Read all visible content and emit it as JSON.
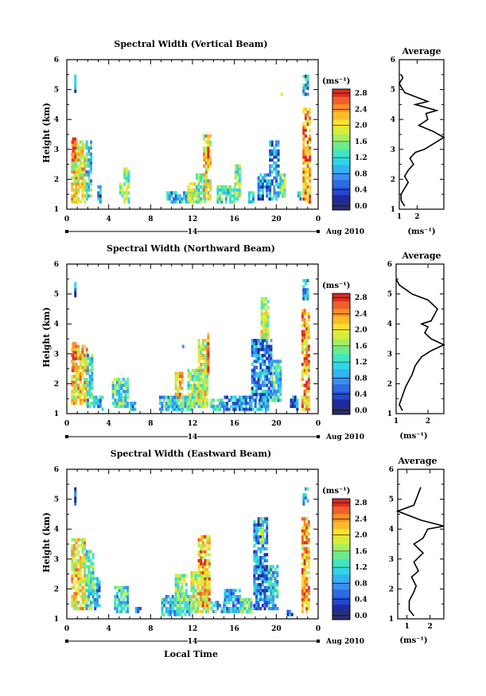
{
  "figure": {
    "xlabel": "Local Time",
    "date_label": "Aug 2010",
    "day_label": "14",
    "colorbar_unit": "(ms⁻¹)",
    "profile_title": "Average",
    "profile_xlabel": "(ms⁻¹)"
  },
  "colors": {
    "background": "#ffffff",
    "palette": [
      "#2b2f6e",
      "#1f2a9c",
      "#2547cc",
      "#2d6be0",
      "#3b8ef0",
      "#31b4f0",
      "#2fd6e6",
      "#3fe6c0",
      "#6aec8e",
      "#a5ee62",
      "#d6ee3c",
      "#fbe22c",
      "#fdbb2a",
      "#f98f28",
      "#ef5f2a",
      "#dd2b25"
    ]
  },
  "chart_data": [
    {
      "type": "heatmap",
      "title": "Spectral Width (Vertical Beam)",
      "ylabel": "Height (km)",
      "x_range": [
        0,
        24
      ],
      "x_ticks": [
        "0",
        "4",
        "8",
        "12",
        "16",
        "20",
        "0"
      ],
      "y_range": [
        1,
        6
      ],
      "y_ticks": [
        "1",
        "2",
        "3",
        "4",
        "5",
        "6"
      ],
      "colorbar": {
        "min": 0.0,
        "max": 3.0,
        "ticks": [
          "2.8",
          "2.4",
          "2.0",
          "1.6",
          "1.2",
          "0.8",
          "0.4",
          "0.0"
        ]
      },
      "regions": [
        {
          "t0": 0.4,
          "t1": 1.8,
          "h0": 1.2,
          "h1": 3.3,
          "v": 2.1
        },
        {
          "t0": 0.5,
          "t1": 0.8,
          "h0": 2.6,
          "h1": 3.4,
          "v": 2.9
        },
        {
          "t0": 1.8,
          "t1": 2.3,
          "h0": 1.3,
          "h1": 3.3,
          "v": 1.3
        },
        {
          "t0": 2.9,
          "t1": 3.2,
          "h0": 1.2,
          "h1": 1.8,
          "v": 0.9
        },
        {
          "t0": 5.0,
          "t1": 5.4,
          "h0": 1.4,
          "h1": 1.9,
          "v": 1.5
        },
        {
          "t0": 5.4,
          "t1": 6.0,
          "h0": 1.2,
          "h1": 2.4,
          "v": 1.8
        },
        {
          "t0": 9.5,
          "t1": 12.0,
          "h0": 1.2,
          "h1": 1.6,
          "v": 1.0
        },
        {
          "t0": 11.5,
          "t1": 12.4,
          "h0": 1.2,
          "h1": 1.9,
          "v": 1.9
        },
        {
          "t0": 12.3,
          "t1": 13.3,
          "h0": 1.2,
          "h1": 2.2,
          "v": 1.6
        },
        {
          "t0": 13.0,
          "t1": 13.8,
          "h0": 1.3,
          "h1": 3.5,
          "v": 2.2
        },
        {
          "t0": 13.4,
          "t1": 13.6,
          "h0": 2.6,
          "h1": 3.5,
          "v": 2.7
        },
        {
          "t0": 14.3,
          "t1": 16.0,
          "h0": 1.2,
          "h1": 1.8,
          "v": 1.4
        },
        {
          "t0": 16.0,
          "t1": 16.6,
          "h0": 1.3,
          "h1": 2.5,
          "v": 1.7
        },
        {
          "t0": 17.3,
          "t1": 17.9,
          "h0": 1.2,
          "h1": 1.6,
          "v": 1.2
        },
        {
          "t0": 18.2,
          "t1": 19.3,
          "h0": 1.3,
          "h1": 2.2,
          "v": 0.8
        },
        {
          "t0": 19.3,
          "t1": 20.3,
          "h0": 1.3,
          "h1": 3.3,
          "v": 0.9
        },
        {
          "t0": 20.3,
          "t1": 20.8,
          "h0": 1.4,
          "h1": 2.2,
          "v": 1.6
        },
        {
          "t0": 22.0,
          "t1": 22.4,
          "h0": 1.3,
          "h1": 1.6,
          "v": 1.2
        },
        {
          "t0": 22.5,
          "t1": 23.2,
          "h0": 1.2,
          "h1": 4.4,
          "v": 2.4
        },
        {
          "t0": 22.5,
          "t1": 23.1,
          "h0": 4.8,
          "h1": 5.5,
          "v": 1.1
        },
        {
          "t0": 0.7,
          "t1": 0.8,
          "h0": 4.9,
          "h1": 5.5,
          "v": 0.7
        },
        {
          "t0": 20.4,
          "t1": 20.5,
          "h0": 4.7,
          "h1": 4.9,
          "v": 1.9
        }
      ],
      "profile": {
        "x_range": [
          1,
          3.5
        ],
        "x_ticks": [
          "1",
          "2"
        ],
        "x_tick_values": [
          1,
          2
        ],
        "y_ticks": [
          "1",
          "2",
          "3",
          "4",
          "5",
          "6"
        ],
        "points": [
          [
            1.3,
            1.1
          ],
          [
            1.1,
            1.3
          ],
          [
            1.1,
            1.5
          ],
          [
            1.3,
            1.7
          ],
          [
            1.5,
            1.9
          ],
          [
            1.3,
            2.1
          ],
          [
            1.5,
            2.3
          ],
          [
            1.8,
            2.5
          ],
          [
            1.6,
            2.7
          ],
          [
            1.9,
            2.9
          ],
          [
            2.4,
            3.0
          ],
          [
            3.5,
            3.4
          ],
          [
            2.9,
            3.6
          ],
          [
            2.1,
            3.8
          ],
          [
            2.6,
            4.0
          ],
          [
            2.5,
            4.2
          ],
          [
            3.1,
            4.3
          ],
          [
            1.9,
            4.5
          ],
          [
            2.6,
            4.6
          ],
          [
            1.3,
            4.9
          ],
          [
            1.0,
            5.2
          ],
          [
            1.2,
            5.4
          ],
          [
            1.1,
            5.5
          ]
        ]
      }
    },
    {
      "type": "heatmap",
      "title": "Spectral Width (Northward Beam)",
      "ylabel": "Height (km)",
      "x_range": [
        0,
        24
      ],
      "x_ticks": [
        "0",
        "4",
        "8",
        "12",
        "16",
        "20",
        "0"
      ],
      "y_range": [
        1,
        6
      ],
      "y_ticks": [
        "1",
        "2",
        "3",
        "4",
        "5",
        "6"
      ],
      "colorbar": {
        "min": 0.0,
        "max": 3.0,
        "ticks": [
          "2.8",
          "2.4",
          "2.0",
          "1.6",
          "1.2",
          "0.8",
          "0.4",
          "0.0"
        ]
      },
      "regions": [
        {
          "t0": 0.4,
          "t1": 1.9,
          "h0": 1.3,
          "h1": 3.3,
          "v": 2.2
        },
        {
          "t0": 0.5,
          "t1": 0.9,
          "h0": 2.4,
          "h1": 3.4,
          "v": 2.9
        },
        {
          "t0": 1.9,
          "t1": 2.5,
          "h0": 1.2,
          "h1": 3.0,
          "v": 1.3
        },
        {
          "t0": 2.5,
          "t1": 3.5,
          "h0": 1.1,
          "h1": 1.6,
          "v": 0.9
        },
        {
          "t0": 4.3,
          "t1": 5.8,
          "h0": 1.2,
          "h1": 2.2,
          "v": 1.4
        },
        {
          "t0": 6.0,
          "t1": 6.6,
          "h0": 1.1,
          "h1": 1.4,
          "v": 1.0
        },
        {
          "t0": 8.8,
          "t1": 12.0,
          "h0": 1.1,
          "h1": 1.6,
          "v": 1.2
        },
        {
          "t0": 10.3,
          "t1": 11.0,
          "h0": 1.5,
          "h1": 2.4,
          "v": 2.3
        },
        {
          "t0": 11.5,
          "t1": 13.5,
          "h0": 1.2,
          "h1": 2.5,
          "v": 1.6
        },
        {
          "t0": 12.5,
          "t1": 13.4,
          "h0": 1.3,
          "h1": 3.5,
          "v": 2.0
        },
        {
          "t0": 13.4,
          "t1": 13.6,
          "h0": 2.3,
          "h1": 3.8,
          "v": 2.7
        },
        {
          "t0": 13.7,
          "t1": 15.0,
          "h0": 1.1,
          "h1": 1.5,
          "v": 1.3
        },
        {
          "t0": 15.0,
          "t1": 17.5,
          "h0": 1.1,
          "h1": 1.6,
          "v": 0.9
        },
        {
          "t0": 17.5,
          "t1": 19.3,
          "h0": 1.1,
          "h1": 1.5,
          "v": 1.0
        },
        {
          "t0": 17.6,
          "t1": 19.5,
          "h0": 1.5,
          "h1": 3.5,
          "v": 0.8
        },
        {
          "t0": 18.5,
          "t1": 19.2,
          "h0": 3.5,
          "h1": 4.9,
          "v": 1.9
        },
        {
          "t0": 19.5,
          "t1": 20.4,
          "h0": 1.4,
          "h1": 2.8,
          "v": 1.3
        },
        {
          "t0": 21.3,
          "t1": 22.0,
          "h0": 1.1,
          "h1": 1.6,
          "v": 0.8
        },
        {
          "t0": 22.4,
          "t1": 23.2,
          "h0": 1.1,
          "h1": 4.5,
          "v": 2.4
        },
        {
          "t0": 22.5,
          "t1": 23.1,
          "h0": 4.8,
          "h1": 5.5,
          "v": 1.1
        },
        {
          "t0": 0.7,
          "t1": 0.8,
          "h0": 4.9,
          "h1": 5.4,
          "v": 0.7
        },
        {
          "t0": 11.0,
          "t1": 11.2,
          "h0": 3.2,
          "h1": 3.4,
          "v": 0.5
        }
      ],
      "profile": {
        "x_range": [
          1,
          2.5
        ],
        "x_ticks": [
          "1",
          "2"
        ],
        "x_tick_values": [
          1,
          2
        ],
        "y_ticks": [
          "1",
          "2",
          "3",
          "4",
          "5",
          "6"
        ],
        "points": [
          [
            1.2,
            1.1
          ],
          [
            1.1,
            1.3
          ],
          [
            1.2,
            1.6
          ],
          [
            1.3,
            1.9
          ],
          [
            1.4,
            2.1
          ],
          [
            1.5,
            2.3
          ],
          [
            1.6,
            2.6
          ],
          [
            1.8,
            2.9
          ],
          [
            2.1,
            3.1
          ],
          [
            2.5,
            3.3
          ],
          [
            2.1,
            3.5
          ],
          [
            1.9,
            3.7
          ],
          [
            2.0,
            3.9
          ],
          [
            1.8,
            4.0
          ],
          [
            2.1,
            4.1
          ],
          [
            2.3,
            4.5
          ],
          [
            2.0,
            4.8
          ],
          [
            1.5,
            5.0
          ],
          [
            1.1,
            5.3
          ],
          [
            1.0,
            5.5
          ]
        ]
      }
    },
    {
      "type": "heatmap",
      "title": "Spectral Width (Eastward Beam)",
      "ylabel": "Height (km)",
      "x_range": [
        0,
        24
      ],
      "x_ticks": [
        "0",
        "4",
        "8",
        "12",
        "16",
        "20",
        "0"
      ],
      "y_range": [
        1,
        6
      ],
      "y_ticks": [
        "1",
        "2",
        "3",
        "4",
        "5",
        "6"
      ],
      "colorbar": {
        "min": 0.0,
        "max": 3.0,
        "ticks": [
          "2.8",
          "2.4",
          "2.0",
          "1.6",
          "1.2",
          "0.8",
          "0.4",
          "0.0"
        ]
      },
      "regions": [
        {
          "t0": 0.4,
          "t1": 1.8,
          "h0": 1.3,
          "h1": 3.7,
          "v": 2.1
        },
        {
          "t0": 1.8,
          "t1": 2.6,
          "h0": 1.3,
          "h1": 3.3,
          "v": 1.4
        },
        {
          "t0": 2.6,
          "t1": 3.2,
          "h0": 1.3,
          "h1": 2.4,
          "v": 1.0
        },
        {
          "t0": 4.5,
          "t1": 5.8,
          "h0": 1.2,
          "h1": 2.1,
          "v": 1.3
        },
        {
          "t0": 6.5,
          "t1": 7.0,
          "h0": 1.2,
          "h1": 1.4,
          "v": 0.9
        },
        {
          "t0": 9.0,
          "t1": 11.8,
          "h0": 1.1,
          "h1": 1.8,
          "v": 1.1
        },
        {
          "t0": 10.3,
          "t1": 11.5,
          "h0": 1.4,
          "h1": 2.5,
          "v": 1.7
        },
        {
          "t0": 11.8,
          "t1": 13.5,
          "h0": 1.2,
          "h1": 2.6,
          "v": 1.9
        },
        {
          "t0": 12.5,
          "t1": 13.6,
          "h0": 1.4,
          "h1": 3.8,
          "v": 2.3
        },
        {
          "t0": 13.7,
          "t1": 15.0,
          "h0": 1.2,
          "h1": 1.6,
          "v": 1.2
        },
        {
          "t0": 15.0,
          "t1": 16.5,
          "h0": 1.2,
          "h1": 2.0,
          "v": 1.0
        },
        {
          "t0": 16.5,
          "t1": 17.7,
          "h0": 1.2,
          "h1": 1.7,
          "v": 1.4
        },
        {
          "t0": 17.8,
          "t1": 19.2,
          "h0": 1.3,
          "h1": 4.4,
          "v": 0.8
        },
        {
          "t0": 18.4,
          "t1": 18.8,
          "h0": 3.4,
          "h1": 4.4,
          "v": 1.6
        },
        {
          "t0": 19.2,
          "t1": 20.2,
          "h0": 1.3,
          "h1": 2.8,
          "v": 1.2
        },
        {
          "t0": 21.0,
          "t1": 21.5,
          "h0": 1.1,
          "h1": 1.3,
          "v": 0.5
        },
        {
          "t0": 22.4,
          "t1": 23.2,
          "h0": 1.2,
          "h1": 4.4,
          "v": 2.4
        },
        {
          "t0": 22.5,
          "t1": 23.1,
          "h0": 4.8,
          "h1": 5.4,
          "v": 1.1
        },
        {
          "t0": 0.7,
          "t1": 0.8,
          "h0": 4.8,
          "h1": 5.4,
          "v": 0.7
        }
      ],
      "profile": {
        "x_range": [
          0.6,
          2.6
        ],
        "x_ticks": [
          "1",
          "2"
        ],
        "x_tick_values": [
          1,
          2
        ],
        "y_ticks": [
          "1",
          "2",
          "3",
          "4",
          "5",
          "6"
        ],
        "points": [
          [
            1.3,
            1.1
          ],
          [
            1.1,
            1.3
          ],
          [
            1.1,
            1.6
          ],
          [
            1.3,
            1.9
          ],
          [
            1.4,
            2.1
          ],
          [
            1.2,
            2.4
          ],
          [
            1.5,
            2.6
          ],
          [
            1.3,
            2.9
          ],
          [
            1.7,
            3.2
          ],
          [
            1.3,
            3.5
          ],
          [
            1.7,
            3.7
          ],
          [
            1.9,
            4.0
          ],
          [
            2.6,
            4.1
          ],
          [
            1.6,
            4.3
          ],
          [
            0.6,
            4.6
          ],
          [
            1.3,
            4.8
          ],
          [
            1.6,
            5.4
          ]
        ]
      }
    }
  ]
}
